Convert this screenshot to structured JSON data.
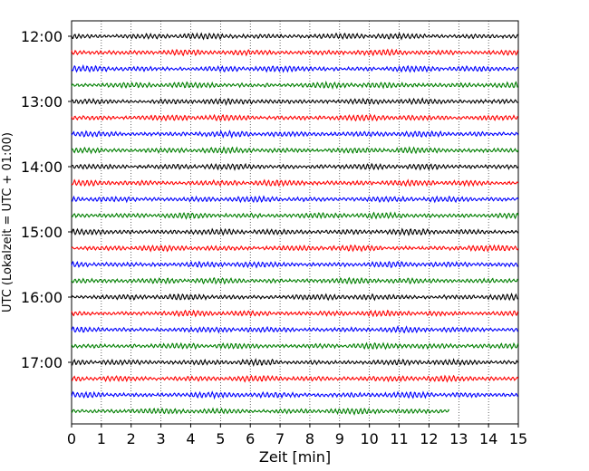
{
  "chart_data": {
    "type": "line",
    "title": "",
    "xlabel": "Zeit  [min]",
    "ylabel": "UTC (Lokalzeit = UTC + 01:00)",
    "xlim": [
      0,
      15
    ],
    "xticks": [
      "0",
      "1",
      "2",
      "3",
      "4",
      "5",
      "6",
      "7",
      "8",
      "9",
      "10",
      "11",
      "12",
      "13",
      "14",
      "15"
    ],
    "yticks": [
      "12:00",
      "13:00",
      "14:00",
      "15:00",
      "16:00",
      "17:00"
    ],
    "trace_interval_min": 15,
    "start_time": "12:00",
    "trace_count": 24,
    "last_trace_end_min": 12.7,
    "grid": "vertical dotted at each minute",
    "trace_colors": [
      "#000000",
      "#ff0000",
      "#0000ff",
      "#007f00"
    ],
    "legend": "none"
  }
}
